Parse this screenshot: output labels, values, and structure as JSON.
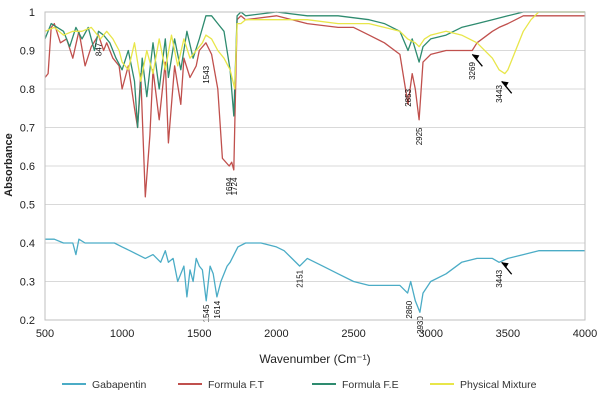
{
  "chart_data": {
    "type": "line",
    "title": "",
    "xlabel": "Wavenumber (Cm⁻¹)",
    "ylabel": "Absorbance",
    "xlim": [
      500,
      4000
    ],
    "ylim": [
      0.2,
      1.0
    ],
    "xticks": [
      500,
      1000,
      1500,
      2000,
      2500,
      3000,
      3500,
      4000
    ],
    "yticks": [
      0.2,
      0.3,
      0.4,
      0.5,
      0.6,
      0.7,
      0.8,
      0.9,
      1
    ],
    "grid": "horizontal",
    "legend_position": "bottom",
    "series": [
      {
        "name": "Gabapentin",
        "color": "#4bacc6",
        "x": [
          500,
          560,
          620,
          680,
          700,
          720,
          760,
          800,
          850,
          900,
          950,
          1000,
          1050,
          1100,
          1150,
          1200,
          1250,
          1280,
          1300,
          1330,
          1360,
          1400,
          1420,
          1440,
          1460,
          1480,
          1500,
          1520,
          1545,
          1570,
          1590,
          1614,
          1640,
          1680,
          1700,
          1750,
          1800,
          1900,
          2000,
          2050,
          2100,
          2151,
          2200,
          2300,
          2400,
          2500,
          2600,
          2700,
          2800,
          2850,
          2870,
          2900,
          2930,
          2950,
          3000,
          3100,
          3200,
          3300,
          3400,
          3443,
          3500,
          3600,
          3700,
          3800,
          3900,
          4000
        ],
        "y": [
          0.41,
          0.41,
          0.4,
          0.4,
          0.37,
          0.41,
          0.4,
          0.4,
          0.4,
          0.4,
          0.4,
          0.39,
          0.38,
          0.37,
          0.36,
          0.37,
          0.35,
          0.38,
          0.35,
          0.36,
          0.3,
          0.34,
          0.26,
          0.33,
          0.3,
          0.36,
          0.34,
          0.33,
          0.25,
          0.34,
          0.32,
          0.26,
          0.3,
          0.34,
          0.35,
          0.39,
          0.4,
          0.4,
          0.39,
          0.38,
          0.36,
          0.34,
          0.36,
          0.34,
          0.32,
          0.3,
          0.29,
          0.29,
          0.29,
          0.27,
          0.3,
          0.25,
          0.22,
          0.27,
          0.3,
          0.32,
          0.35,
          0.36,
          0.36,
          0.35,
          0.36,
          0.37,
          0.38,
          0.38,
          0.38,
          0.38
        ]
      },
      {
        "name": "Formula F.T",
        "color": "#c0504d",
        "x": [
          500,
          520,
          540,
          560,
          600,
          640,
          680,
          720,
          760,
          800,
          847,
          880,
          900,
          940,
          980,
          1000,
          1040,
          1080,
          1100,
          1120,
          1150,
          1180,
          1200,
          1240,
          1280,
          1300,
          1340,
          1380,
          1400,
          1440,
          1480,
          1500,
          1543,
          1580,
          1620,
          1650,
          1694,
          1710,
          1724,
          1745,
          1770,
          1800,
          2000,
          2200,
          2400,
          2500,
          2600,
          2700,
          2800,
          2853,
          2880,
          2900,
          2925,
          2950,
          3000,
          3100,
          3200,
          3269,
          3300,
          3400,
          3443,
          3500,
          3600,
          3700,
          3800,
          3900,
          4000
        ],
        "y": [
          0.83,
          0.84,
          0.96,
          0.97,
          0.92,
          0.93,
          0.88,
          0.95,
          0.86,
          0.91,
          0.94,
          0.9,
          0.92,
          0.88,
          0.86,
          0.8,
          0.86,
          0.75,
          0.7,
          0.84,
          0.52,
          0.68,
          0.85,
          0.72,
          0.87,
          0.66,
          0.86,
          0.76,
          0.88,
          0.83,
          0.86,
          0.9,
          0.92,
          0.89,
          0.8,
          0.62,
          0.6,
          0.61,
          0.59,
          0.98,
          0.99,
          0.98,
          0.99,
          0.97,
          0.96,
          0.96,
          0.94,
          0.92,
          0.89,
          0.76,
          0.84,
          0.8,
          0.72,
          0.87,
          0.89,
          0.9,
          0.9,
          0.9,
          0.92,
          0.95,
          0.96,
          0.97,
          0.99,
          0.99,
          0.99,
          0.99,
          0.99
        ]
      },
      {
        "name": "Formula F.E",
        "color": "#2e8b6f",
        "x": [
          500,
          540,
          580,
          620,
          660,
          700,
          740,
          780,
          820,
          847,
          880,
          920,
          960,
          1000,
          1040,
          1080,
          1100,
          1130,
          1160,
          1200,
          1240,
          1280,
          1300,
          1340,
          1380,
          1420,
          1460,
          1500,
          1543,
          1580,
          1620,
          1660,
          1700,
          1724,
          1745,
          1770,
          1800,
          2000,
          2200,
          2400,
          2600,
          2700,
          2800,
          2853,
          2880,
          2925,
          2950,
          3000,
          3100,
          3200,
          3300,
          3400,
          3500,
          3600,
          3700,
          3800,
          3900,
          4000
        ],
        "y": [
          0.93,
          0.97,
          0.96,
          0.95,
          0.91,
          0.96,
          0.93,
          0.96,
          0.9,
          0.95,
          0.94,
          0.92,
          0.88,
          0.85,
          0.9,
          0.82,
          0.7,
          0.88,
          0.78,
          0.92,
          0.8,
          0.93,
          0.83,
          0.93,
          0.85,
          0.95,
          0.88,
          0.93,
          0.99,
          0.99,
          0.97,
          0.95,
          0.85,
          0.73,
          0.99,
          1.0,
          0.99,
          1.0,
          0.99,
          0.99,
          0.98,
          0.97,
          0.95,
          0.9,
          0.93,
          0.87,
          0.91,
          0.93,
          0.94,
          0.96,
          0.97,
          0.98,
          0.99,
          1.0,
          1.0,
          1.0,
          1.0,
          1.0
        ]
      },
      {
        "name": "Physical Mixture",
        "color": "#e8e64a",
        "x": [
          500,
          560,
          620,
          680,
          740,
          800,
          860,
          900,
          940,
          980,
          1000,
          1040,
          1080,
          1120,
          1160,
          1200,
          1240,
          1280,
          1320,
          1360,
          1400,
          1440,
          1480,
          1520,
          1543,
          1580,
          1620,
          1660,
          1700,
          1730,
          1745,
          1770,
          1800,
          2000,
          2200,
          2400,
          2600,
          2700,
          2800,
          2850,
          2900,
          2925,
          2960,
          3000,
          3100,
          3200,
          3300,
          3400,
          3443,
          3480,
          3500,
          3550,
          3600,
          3650,
          3700,
          3800,
          3900,
          4000
        ],
        "y": [
          0.95,
          0.96,
          0.94,
          0.95,
          0.95,
          0.96,
          0.93,
          0.95,
          0.93,
          0.9,
          0.87,
          0.85,
          0.92,
          0.82,
          0.9,
          0.84,
          0.93,
          0.85,
          0.94,
          0.86,
          0.93,
          0.88,
          0.9,
          0.92,
          0.94,
          0.93,
          0.9,
          0.88,
          0.85,
          0.8,
          0.97,
          0.97,
          0.98,
          0.98,
          0.98,
          0.97,
          0.97,
          0.96,
          0.95,
          0.93,
          0.92,
          0.91,
          0.93,
          0.94,
          0.95,
          0.94,
          0.92,
          0.88,
          0.85,
          0.84,
          0.85,
          0.9,
          0.95,
          0.98,
          1.0,
          1.0,
          1.0,
          1.0
        ]
      }
    ],
    "annotations": [
      {
        "text": "847",
        "x": 847,
        "y": 0.92,
        "series": "top"
      },
      {
        "text": "1543",
        "x": 1543,
        "y": 0.86,
        "series": "top"
      },
      {
        "text": "1694",
        "x": 1694,
        "y": 0.57,
        "series": "top"
      },
      {
        "text": "1724",
        "x": 1724,
        "y": 0.57,
        "series": "top"
      },
      {
        "text": "2853",
        "x": 2853,
        "y": 0.8,
        "series": "top"
      },
      {
        "text": "2925",
        "x": 2925,
        "y": 0.7,
        "series": "top"
      },
      {
        "text": "3269",
        "x": 3269,
        "y": 0.87,
        "series": "top"
      },
      {
        "text": "3443",
        "x": 3443,
        "y": 0.81,
        "series": "top"
      },
      {
        "text": "1545",
        "x": 1545,
        "y": 0.24,
        "series": "bottom"
      },
      {
        "text": "1614",
        "x": 1614,
        "y": 0.25,
        "series": "bottom"
      },
      {
        "text": "2151",
        "x": 2151,
        "y": 0.33,
        "series": "bottom"
      },
      {
        "text": "2860",
        "x": 2860,
        "y": 0.25,
        "series": "bottom"
      },
      {
        "text": "2930",
        "x": 2930,
        "y": 0.21,
        "series": "bottom"
      },
      {
        "text": "3443",
        "x": 3443,
        "y": 0.33,
        "series": "bottom"
      }
    ],
    "arrows": [
      {
        "x": 3270,
        "y": 0.89
      },
      {
        "x": 3460,
        "y": 0.82
      },
      {
        "x": 3460,
        "y": 0.35
      }
    ]
  }
}
